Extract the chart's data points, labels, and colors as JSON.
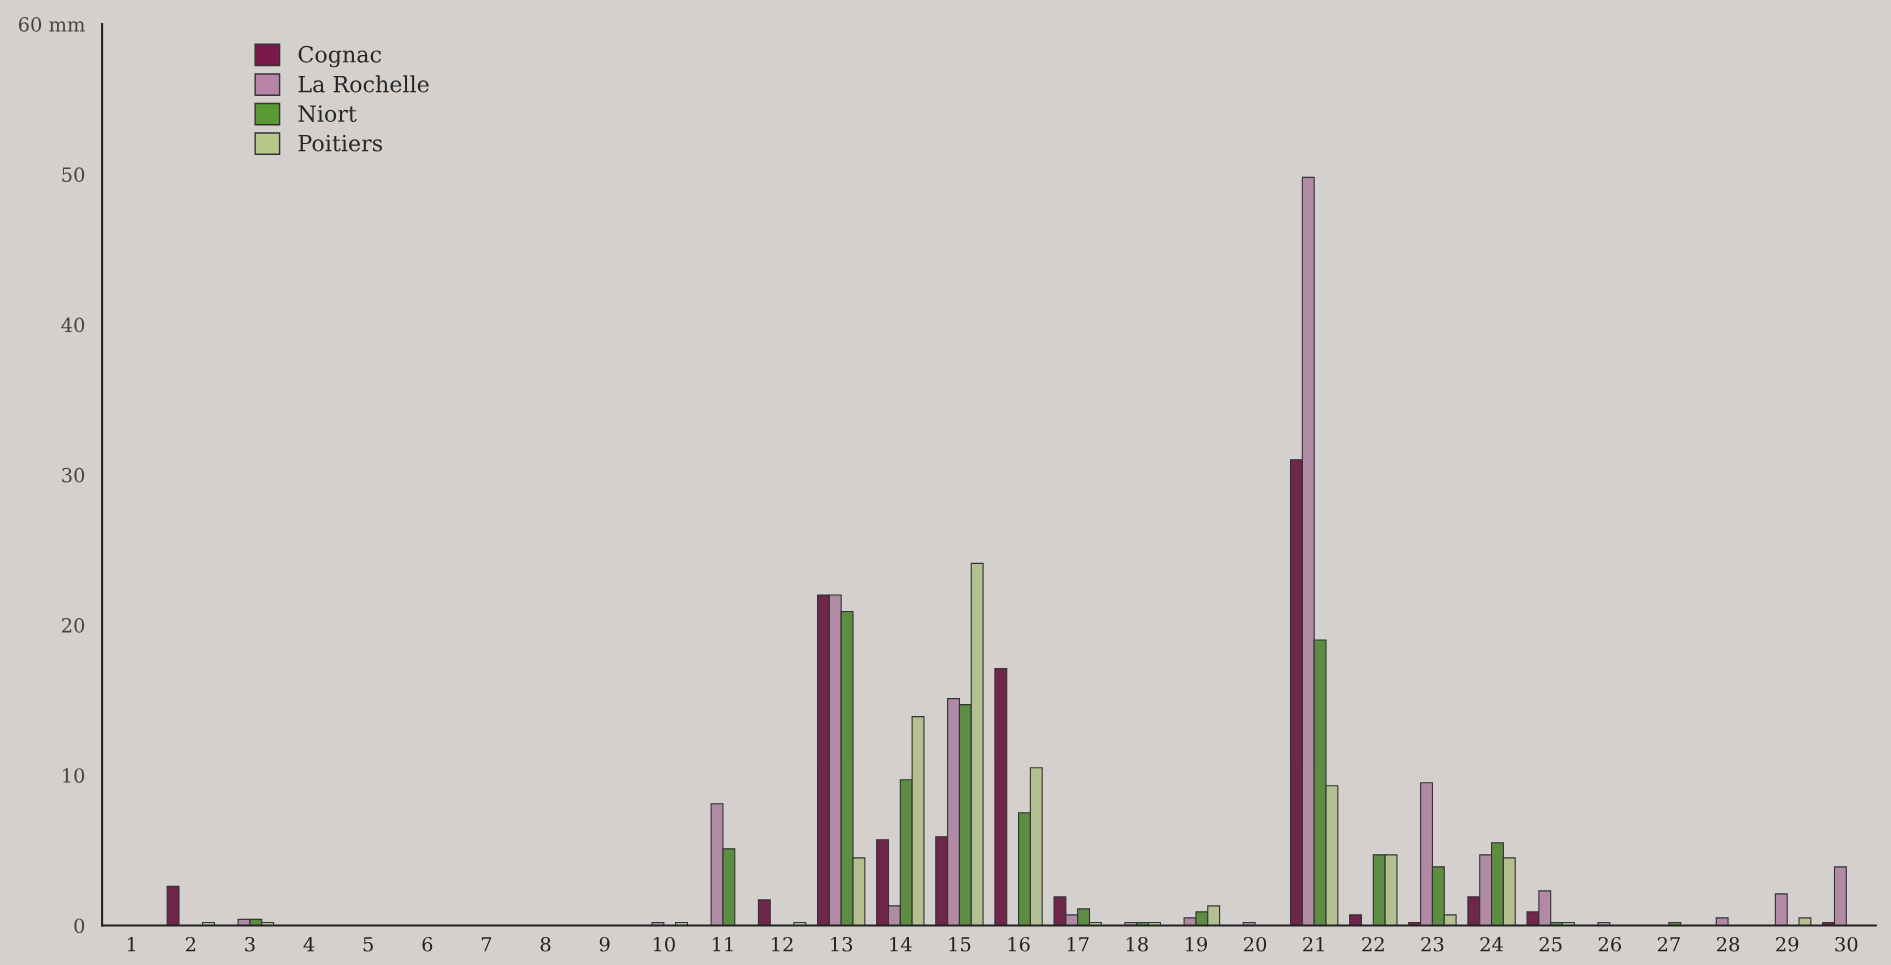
{
  "chart_data": {
    "type": "bar",
    "categories": [
      "1",
      "2",
      "3",
      "4",
      "5",
      "6",
      "7",
      "8",
      "9",
      "10",
      "11",
      "12",
      "13",
      "14",
      "15",
      "16",
      "17",
      "18",
      "19",
      "20",
      "21",
      "22",
      "23",
      "24",
      "25",
      "26",
      "27",
      "28",
      "29",
      "30"
    ],
    "series": [
      {
        "name": "Cognac",
        "color": "#7a1a4a",
        "values": [
          0,
          2.6,
          0,
          0,
          0,
          0,
          0,
          0,
          0,
          0,
          0,
          1.7,
          22,
          5.7,
          5.9,
          17.1,
          1.9,
          null,
          null,
          0,
          31,
          0.7,
          0.2,
          1.9,
          0.9,
          null,
          0,
          0,
          0,
          0.2
        ]
      },
      {
        "name": "La Rochelle",
        "color": "#b784a8",
        "values": [
          0,
          0,
          0.4,
          0,
          0,
          0,
          0,
          0,
          0,
          0.2,
          8.1,
          0,
          22,
          1.3,
          15.1,
          0,
          0.7,
          0.2,
          0.5,
          0.2,
          49.8,
          0,
          9.5,
          4.7,
          2.3,
          0.2,
          0,
          0.5,
          2.1,
          3.9
        ]
      },
      {
        "name": "Niort",
        "color": "#5a9a35",
        "values": [
          0,
          0,
          0.4,
          0,
          0,
          0,
          0,
          0,
          0,
          0,
          5.1,
          0,
          20.9,
          9.7,
          14.7,
          7.5,
          1.1,
          0.2,
          0.9,
          0,
          19,
          4.7,
          3.9,
          5.5,
          0.2,
          0,
          0.2,
          0,
          0,
          0
        ]
      },
      {
        "name": "Poitiers",
        "color": "#b8c88a",
        "values": [
          0,
          0.2,
          0.2,
          0,
          0,
          0,
          0,
          0,
          0,
          0.2,
          0,
          0.2,
          4.5,
          13.9,
          24.1,
          10.5,
          0.2,
          0.2,
          1.3,
          0,
          9.3,
          4.7,
          0.7,
          4.5,
          0.2,
          0,
          0,
          0,
          0.5,
          0
        ]
      }
    ],
    "ylim": [
      0,
      60
    ],
    "yticks": [
      0,
      10,
      20,
      30,
      40,
      50,
      {
        "value": 60,
        "label": "60 mm"
      }
    ],
    "grid": false,
    "legend": "top left"
  }
}
